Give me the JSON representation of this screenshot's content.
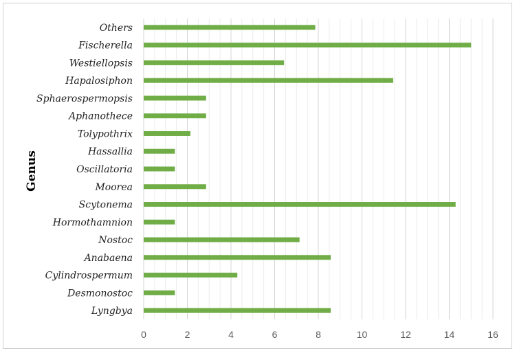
{
  "chart_data": {
    "type": "bar",
    "orientation": "horizontal",
    "ylabel": "Genus",
    "xlabel": "",
    "xlim": [
      0,
      16
    ],
    "xticks": [
      0,
      2,
      4,
      6,
      8,
      10,
      12,
      14,
      16
    ],
    "grid": "vertical, major and minor",
    "legend": "none",
    "bar_color": "#70ad47",
    "categories": [
      "Others",
      "Fischerella",
      "Westiellopsis",
      "Hapalosiphon",
      "Sphaerospermopsis",
      "Aphanothece",
      "Tolypothrix",
      "Hassallia",
      "Oscillatoria",
      "Moorea",
      "Scytonema",
      "Hormothamnion",
      "Nostoc",
      "Anabaena",
      "Cylindrospermum",
      "Desmonostoc",
      "Lyngbya"
    ],
    "values": [
      7.86,
      15.0,
      6.43,
      11.43,
      2.86,
      2.86,
      2.14,
      1.43,
      1.43,
      2.86,
      14.29,
      1.43,
      7.14,
      8.57,
      4.29,
      1.43,
      8.57
    ]
  }
}
